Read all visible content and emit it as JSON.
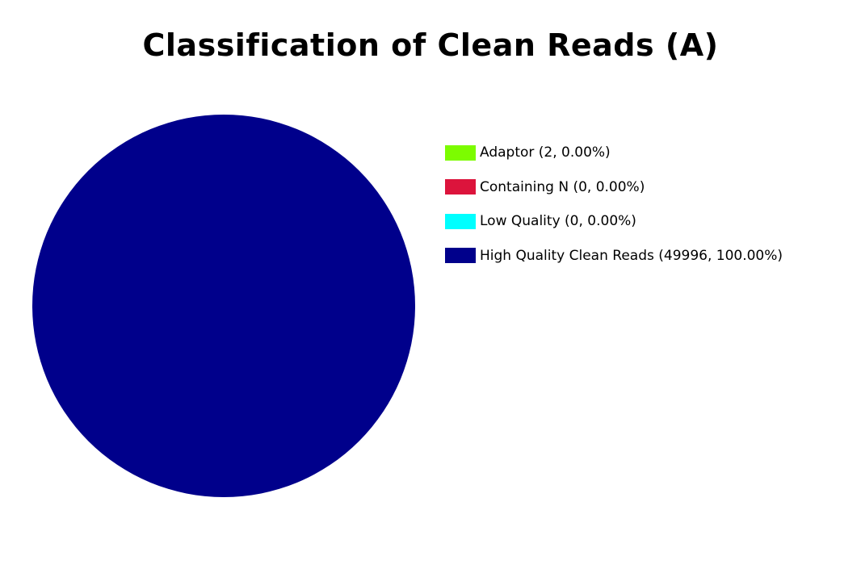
{
  "chart_data": {
    "type": "pie",
    "title": "Classification of Clean Reads (A)",
    "slices": [
      {
        "name": "Adaptor",
        "value": 2,
        "percent": 0.0,
        "color": "#7CFC00",
        "label": "Adaptor (2, 0.00%)"
      },
      {
        "name": "Containing N",
        "value": 0,
        "percent": 0.0,
        "color": "#DC143C",
        "label": "Containing N (0, 0.00%)"
      },
      {
        "name": "Low Quality",
        "value": 0,
        "percent": 0.0,
        "color": "#00FFFF",
        "label": "Low Quality (0, 0.00%)"
      },
      {
        "name": "High Quality Clean Reads",
        "value": 49996,
        "percent": 100.0,
        "color": "#00008B",
        "label": "High Quality Clean Reads (49996, 100.00%)"
      }
    ],
    "legend_position": "right"
  }
}
